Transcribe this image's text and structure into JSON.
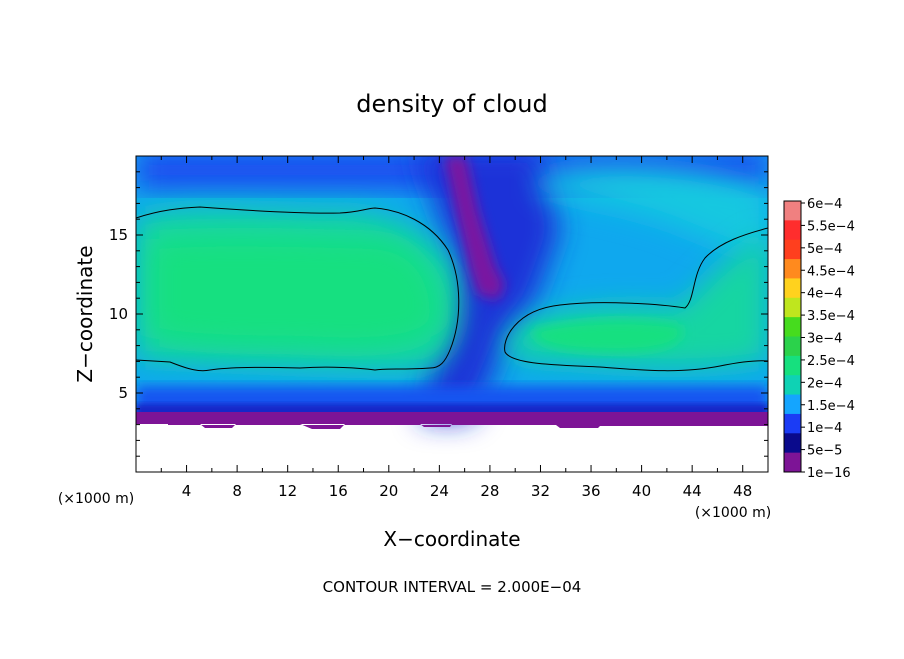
{
  "chart_data": {
    "type": "heatmap",
    "title": "density of cloud",
    "xlabel": "X−coordinate",
    "ylabel": "Z−coordinate",
    "x_unit_label": "(×1000 m)",
    "y_unit_label": "(×1000 m)",
    "xlim": [
      0,
      50
    ],
    "ylim": [
      0,
      20
    ],
    "x_ticks": [
      4,
      8,
      12,
      16,
      20,
      24,
      28,
      32,
      36,
      40,
      44,
      48
    ],
    "y_ticks": [
      5,
      10,
      15
    ],
    "colorbar": {
      "labels": [
        "6e−4",
        "5.5e−4",
        "5e−4",
        "4.5e−4",
        "4e−4",
        "3.5e−4",
        "3e−4",
        "2.5e−4",
        "2e−4",
        "1.5e−4",
        "1e−4",
        "5e−5",
        "1e−16"
      ],
      "colors": [
        "#f08080",
        "#ff2d2d",
        "#ff3f1e",
        "#ff8a1e",
        "#ffd21e",
        "#bfe61e",
        "#46dc1e",
        "#2bd24b",
        "#16e07e",
        "#0fd2b4",
        "#14a5ff",
        "#1b3cf5",
        "#0a0a8c",
        "#7d1496"
      ]
    },
    "contour_levels": [
      "2.000E-04"
    ],
    "footer": "CONTOUR INTERVAL = 2.000E−04",
    "field": {
      "cloud_base_km": 3.0,
      "cloud_top_km": 20.0,
      "max_value": 0.00024,
      "core_regions": [
        {
          "x_range": [
            0,
            23
          ],
          "z_range": [
            6.5,
            16.5
          ]
        },
        {
          "x_range": [
            29,
            50
          ],
          "z_range": [
            6.5,
            10.5
          ]
        }
      ],
      "clear_column": {
        "x_range": [
          24,
          29
        ],
        "z_range": [
          11,
          20
        ]
      }
    }
  }
}
